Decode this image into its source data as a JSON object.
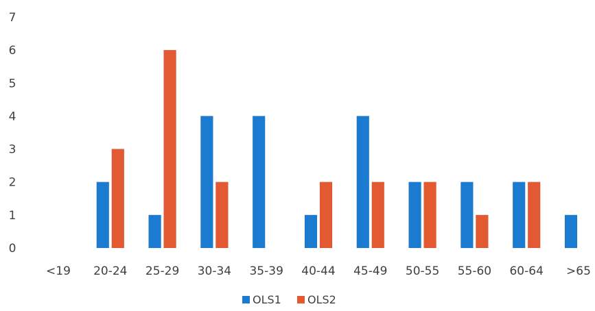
{
  "chart_data": {
    "type": "bar",
    "title": "",
    "xlabel": "",
    "ylabel": "",
    "categories": [
      "<19",
      "20-24",
      "25-29",
      "30-34",
      "35-39",
      "40-44",
      "45-49",
      "50-55",
      "55-60",
      "60-64",
      ">65"
    ],
    "series": [
      {
        "name": "OLS1",
        "color": "#1b7bd1",
        "values": [
          0,
          2,
          1,
          4,
          4,
          1,
          4,
          2,
          2,
          2,
          1
        ]
      },
      {
        "name": "OLS2",
        "color": "#e35a32",
        "values": [
          0,
          3,
          6,
          2,
          0,
          2,
          2,
          2,
          1,
          2,
          0
        ]
      }
    ],
    "ylim": [
      0,
      7
    ],
    "yticks": [
      0,
      1,
      2,
      3,
      4,
      5,
      6,
      7
    ],
    "grid": false,
    "legend_position": "bottom"
  }
}
